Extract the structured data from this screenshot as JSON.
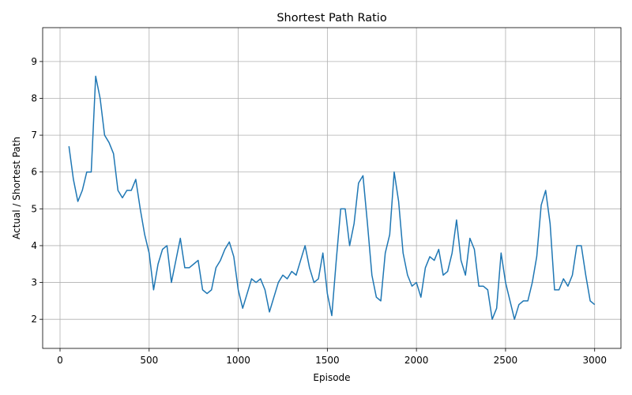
{
  "chart_data": {
    "type": "line",
    "title": "Shortest Path Ratio",
    "x_label": "Episode",
    "y_label": "Actual / Shortest Path",
    "x": [
      50,
      75,
      100,
      125,
      150,
      175,
      200,
      225,
      250,
      275,
      300,
      325,
      350,
      375,
      400,
      425,
      450,
      475,
      500,
      525,
      550,
      575,
      600,
      625,
      650,
      675,
      700,
      725,
      750,
      775,
      800,
      825,
      850,
      875,
      900,
      925,
      950,
      975,
      1000,
      1025,
      1050,
      1075,
      1100,
      1125,
      1150,
      1175,
      1200,
      1225,
      1250,
      1275,
      1300,
      1325,
      1350,
      1375,
      1400,
      1425,
      1450,
      1475,
      1500,
      1525,
      1550,
      1575,
      1600,
      1625,
      1650,
      1675,
      1700,
      1725,
      1750,
      1775,
      1800,
      1825,
      1850,
      1875,
      1900,
      1925,
      1950,
      1975,
      2000,
      2025,
      2050,
      2075,
      2100,
      2125,
      2150,
      2175,
      2200,
      2225,
      2250,
      2275,
      2300,
      2325,
      2350,
      2375,
      2400,
      2425,
      2450,
      2475,
      2500,
      2525,
      2550,
      2575,
      2600,
      2625,
      2650,
      2675,
      2700,
      2725,
      2750,
      2775,
      2800,
      2825,
      2850,
      2875,
      2900,
      2925,
      2950,
      2975,
      3000
    ],
    "values": [
      6.7,
      5.8,
      5.2,
      5.5,
      6.0,
      6.0,
      8.6,
      8.0,
      7.0,
      6.8,
      6.5,
      5.5,
      5.3,
      5.5,
      5.5,
      5.8,
      5.0,
      4.3,
      3.8,
      2.8,
      3.5,
      3.9,
      4.0,
      3.0,
      3.6,
      4.2,
      3.4,
      3.4,
      3.5,
      3.6,
      2.8,
      2.7,
      2.8,
      3.4,
      3.6,
      3.9,
      4.1,
      3.7,
      2.8,
      2.3,
      2.7,
      3.1,
      3.0,
      3.1,
      2.8,
      2.2,
      2.6,
      3.0,
      3.2,
      3.1,
      3.3,
      3.2,
      3.6,
      4.0,
      3.4,
      3.0,
      3.1,
      3.8,
      2.7,
      2.1,
      3.6,
      5.0,
      5.0,
      4.0,
      4.6,
      5.7,
      5.9,
      4.6,
      3.2,
      2.6,
      2.5,
      3.8,
      4.3,
      6.0,
      5.2,
      3.8,
      3.2,
      2.9,
      3.0,
      2.6,
      3.4,
      3.7,
      3.6,
      3.9,
      3.2,
      3.3,
      3.8,
      4.7,
      3.6,
      3.2,
      4.2,
      3.9,
      2.9,
      2.9,
      2.8,
      2.0,
      2.3,
      3.8,
      3.0,
      2.5,
      2.0,
      2.4,
      2.5,
      2.5,
      3.0,
      3.7,
      5.1,
      5.5,
      4.6,
      2.8,
      2.8,
      3.1,
      2.9,
      3.2,
      4.0,
      4.0,
      3.2,
      2.5,
      2.4
    ],
    "color": "#1f77b4",
    "xlim": [
      -97.5,
      3147.5
    ],
    "ylim": [
      1.21,
      9.92
    ],
    "xticks": [
      0,
      500,
      1000,
      1500,
      2000,
      2500,
      3000
    ],
    "yticks": [
      2,
      3,
      4,
      5,
      6,
      7,
      8,
      9
    ],
    "grid": true
  }
}
